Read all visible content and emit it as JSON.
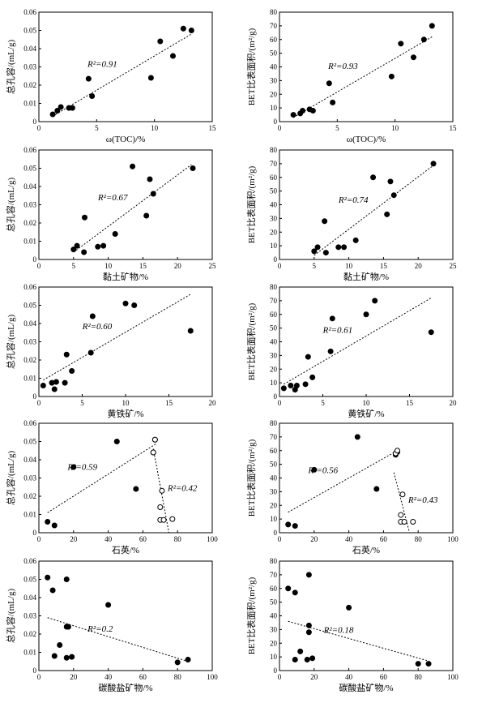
{
  "chart_data": [
    {
      "type": "scatter",
      "x_label": "ω(TOC)/%",
      "y_label": "总孔容/(mL/g)",
      "xlim": [
        0,
        15
      ],
      "ylim": [
        0,
        0.06
      ],
      "xticks": [
        0,
        5,
        10,
        15
      ],
      "yticks": [
        0,
        0.01,
        0.02,
        0.03,
        0.04,
        0.05,
        0.06
      ],
      "series": [
        {
          "marker": "filled",
          "color": "#000000",
          "x": [
            1.2,
            1.6,
            1.9,
            2.6,
            2.9,
            4.3,
            4.6,
            9.7,
            10.5,
            11.6,
            12.5,
            13.2
          ],
          "values": [
            0.004,
            0.006,
            0.008,
            0.0075,
            0.0075,
            0.0235,
            0.014,
            0.024,
            0.044,
            0.036,
            0.051,
            0.05
          ]
        }
      ],
      "trendlines": [
        {
          "x": [
            1.2,
            13.2
          ],
          "y": [
            0.003,
            0.048
          ],
          "annotation": "R²=0.91"
        }
      ]
    },
    {
      "type": "scatter",
      "x_label": "ω(TOC)/%",
      "y_label": "BET比表面积/(m²/g)",
      "xlim": [
        0,
        15
      ],
      "ylim": [
        0,
        80
      ],
      "xticks": [
        0,
        5,
        10,
        15
      ],
      "yticks": [
        0,
        10,
        20,
        30,
        40,
        50,
        60,
        70,
        80
      ],
      "series": [
        {
          "marker": "filled",
          "color": "#000000",
          "x": [
            1.2,
            1.8,
            2,
            2.6,
            2.9,
            4.3,
            4.6,
            9.7,
            10.5,
            11.6,
            12.5,
            13.2
          ],
          "values": [
            5,
            6,
            8,
            9,
            8,
            28,
            14,
            33,
            57,
            47,
            60,
            70
          ]
        }
      ],
      "trendlines": [
        {
          "x": [
            1.2,
            13.2
          ],
          "y": [
            3,
            62
          ],
          "annotation": "R²=0.93"
        }
      ]
    },
    {
      "type": "scatter",
      "x_label": "黏土矿物/%",
      "y_label": "总孔容/(mL/g)",
      "xlim": [
        0,
        25
      ],
      "ylim": [
        0,
        0.06
      ],
      "xticks": [
        0,
        5,
        10,
        15,
        20,
        25
      ],
      "yticks": [
        0,
        0.01,
        0.02,
        0.03,
        0.04,
        0.05,
        0.06
      ],
      "series": [
        {
          "marker": "filled",
          "color": "#000000",
          "x": [
            5,
            5.5,
            6.5,
            6.6,
            8.5,
            9.3,
            11,
            13.5,
            15.5,
            16,
            16.5,
            22.2
          ],
          "values": [
            0.0055,
            0.0075,
            0.004,
            0.023,
            0.007,
            0.0075,
            0.014,
            0.051,
            0.024,
            0.044,
            0.036,
            0.05
          ]
        }
      ],
      "trendlines": [
        {
          "x": [
            5,
            22
          ],
          "y": [
            0.004,
            0.052
          ],
          "annotation": "R²=0.67"
        }
      ]
    },
    {
      "type": "scatter",
      "x_label": "黏土矿物/%",
      "y_label": "BET比表面积/(m²/g)",
      "xlim": [
        0,
        25
      ],
      "ylim": [
        0,
        80
      ],
      "xticks": [
        0,
        5,
        10,
        15,
        20,
        25
      ],
      "yticks": [
        0,
        10,
        20,
        30,
        40,
        50,
        60,
        70,
        80
      ],
      "series": [
        {
          "marker": "filled",
          "color": "#000000",
          "x": [
            5,
            5.5,
            6.5,
            6.7,
            8.5,
            9.3,
            11,
            13.5,
            15.5,
            16,
            16.5,
            22.2
          ],
          "values": [
            6,
            9,
            28,
            5,
            9,
            9,
            14,
            60,
            33,
            57,
            47,
            70
          ]
        }
      ],
      "trendlines": [
        {
          "x": [
            5,
            22
          ],
          "y": [
            3,
            68
          ],
          "annotation": "R²=0.74"
        }
      ]
    },
    {
      "type": "scatter",
      "x_label": "黄铁矿/%",
      "y_label": "总孔容/(mL/g)",
      "xlim": [
        0,
        20
      ],
      "ylim": [
        0,
        0.06
      ],
      "xticks": [
        0,
        5,
        10,
        15,
        20
      ],
      "yticks": [
        0,
        0.01,
        0.02,
        0.03,
        0.04,
        0.05,
        0.06
      ],
      "series": [
        {
          "marker": "filled",
          "color": "#000000",
          "x": [
            0.5,
            1.5,
            1.8,
            2,
            3,
            3.2,
            3.8,
            6,
            6.2,
            10,
            11,
            17.5
          ],
          "values": [
            0.006,
            0.0075,
            0.004,
            0.008,
            0.0075,
            0.023,
            0.014,
            0.024,
            0.044,
            0.051,
            0.05,
            0.036
          ]
        }
      ],
      "trendlines": [
        {
          "x": [
            0.5,
            17.5
          ],
          "y": [
            0.009,
            0.056
          ],
          "annotation": "R²=0.60"
        }
      ]
    },
    {
      "type": "scatter",
      "x_label": "黄铁矿/%",
      "y_label": "BET比表面积/(m²/g)",
      "xlim": [
        0,
        20
      ],
      "ylim": [
        0,
        80
      ],
      "xticks": [
        0,
        5,
        10,
        15,
        20
      ],
      "yticks": [
        0,
        10,
        20,
        30,
        40,
        50,
        60,
        70,
        80
      ],
      "series": [
        {
          "marker": "filled",
          "color": "#000000",
          "x": [
            0.5,
            1.3,
            1.8,
            2,
            3,
            3.3,
            3.8,
            5.9,
            6.1,
            10,
            11,
            17.5
          ],
          "values": [
            6,
            8,
            5,
            8,
            9,
            29,
            14,
            33,
            57,
            60,
            70,
            47
          ]
        }
      ],
      "trendlines": [
        {
          "x": [
            0.5,
            17.5
          ],
          "y": [
            9,
            72
          ],
          "annotation": "R²=0.61"
        }
      ]
    },
    {
      "type": "scatter",
      "x_label": "石英/%",
      "y_label": "总孔容/(mL/g)",
      "xlim": [
        0,
        100
      ],
      "ylim": [
        0,
        0.06
      ],
      "xticks": [
        0,
        20,
        40,
        60,
        80,
        100
      ],
      "yticks": [
        0,
        0.01,
        0.02,
        0.03,
        0.04,
        0.05,
        0.06
      ],
      "series": [
        {
          "marker": "filled",
          "color": "#000000",
          "x": [
            5,
            9,
            20,
            45,
            56,
            66,
            67
          ],
          "values": [
            0.006,
            0.004,
            0.036,
            0.05,
            0.024,
            0.044,
            0.051
          ]
        },
        {
          "marker": "open",
          "color": "#000000",
          "x": [
            66,
            67,
            70,
            70,
            71,
            72,
            77
          ],
          "values": [
            0.044,
            0.051,
            0.007,
            0.014,
            0.023,
            0.007,
            0.0075
          ]
        }
      ],
      "trendlines": [
        {
          "x": [
            5,
            68
          ],
          "y": [
            0.011,
            0.049
          ],
          "annotation": "R²=0.59"
        },
        {
          "x": [
            66,
            75
          ],
          "y": [
            0.046,
            0
          ],
          "annotation": "R²=0.42"
        }
      ]
    },
    {
      "type": "scatter",
      "x_label": "石英/%",
      "y_label": "BET比表面积/(m²/g)",
      "xlim": [
        0,
        100
      ],
      "ylim": [
        0,
        80
      ],
      "xticks": [
        0,
        20,
        40,
        60,
        80,
        100
      ],
      "yticks": [
        0,
        10,
        20,
        30,
        40,
        50,
        60,
        70,
        80
      ],
      "series": [
        {
          "marker": "filled",
          "color": "#000000",
          "x": [
            5,
            9,
            20,
            45,
            56,
            67,
            68
          ],
          "values": [
            6,
            5,
            46,
            70,
            32,
            57,
            59
          ]
        },
        {
          "marker": "open",
          "color": "#000000",
          "x": [
            67,
            68,
            70,
            70,
            71,
            72,
            77
          ],
          "values": [
            58,
            60,
            8,
            13,
            28,
            8,
            8
          ]
        }
      ],
      "trendlines": [
        {
          "x": [
            5,
            68
          ],
          "y": [
            15,
            60
          ],
          "annotation": "R²=0.56"
        },
        {
          "x": [
            66,
            75
          ],
          "y": [
            44,
            0
          ],
          "annotation": "R²=0.43"
        }
      ]
    },
    {
      "type": "scatter",
      "x_label": "碳酸盐矿物/%",
      "y_label": "总孔容/(mL/g)",
      "xlim": [
        0,
        100
      ],
      "ylim": [
        0,
        0.06
      ],
      "xticks": [
        0,
        20,
        40,
        60,
        80,
        100
      ],
      "yticks": [
        0,
        0.01,
        0.02,
        0.03,
        0.04,
        0.05,
        0.06
      ],
      "series": [
        {
          "marker": "filled",
          "color": "#000000",
          "x": [
            5,
            8,
            9,
            12,
            16,
            16,
            17,
            16,
            19,
            40,
            80,
            86
          ],
          "values": [
            0.051,
            0.044,
            0.008,
            0.014,
            0.05,
            0.024,
            0.024,
            0.007,
            0.0075,
            0.036,
            0.0045,
            0.006
          ]
        }
      ],
      "trendlines": [
        {
          "x": [
            5,
            86
          ],
          "y": [
            0.029,
            0.005
          ],
          "annotation": "R²=0.2"
        }
      ]
    },
    {
      "type": "scatter",
      "x_label": "碳酸盐矿物/%",
      "y_label": "BET比表面积/(m²/g)",
      "xlim": [
        0,
        100
      ],
      "ylim": [
        0,
        80
      ],
      "xticks": [
        0,
        20,
        40,
        60,
        80,
        100
      ],
      "yticks": [
        0,
        10,
        20,
        30,
        40,
        50,
        60,
        70,
        80
      ],
      "series": [
        {
          "marker": "filled",
          "color": "#000000",
          "x": [
            5,
            9,
            9,
            12,
            17,
            17,
            17,
            16,
            19,
            40,
            80,
            86
          ],
          "values": [
            60,
            57,
            8,
            14,
            70,
            33,
            28,
            8,
            9,
            46,
            5,
            5
          ]
        }
      ],
      "trendlines": [
        {
          "x": [
            5,
            86
          ],
          "y": [
            36,
            7
          ],
          "annotation": "R²=0.18"
        }
      ]
    }
  ]
}
